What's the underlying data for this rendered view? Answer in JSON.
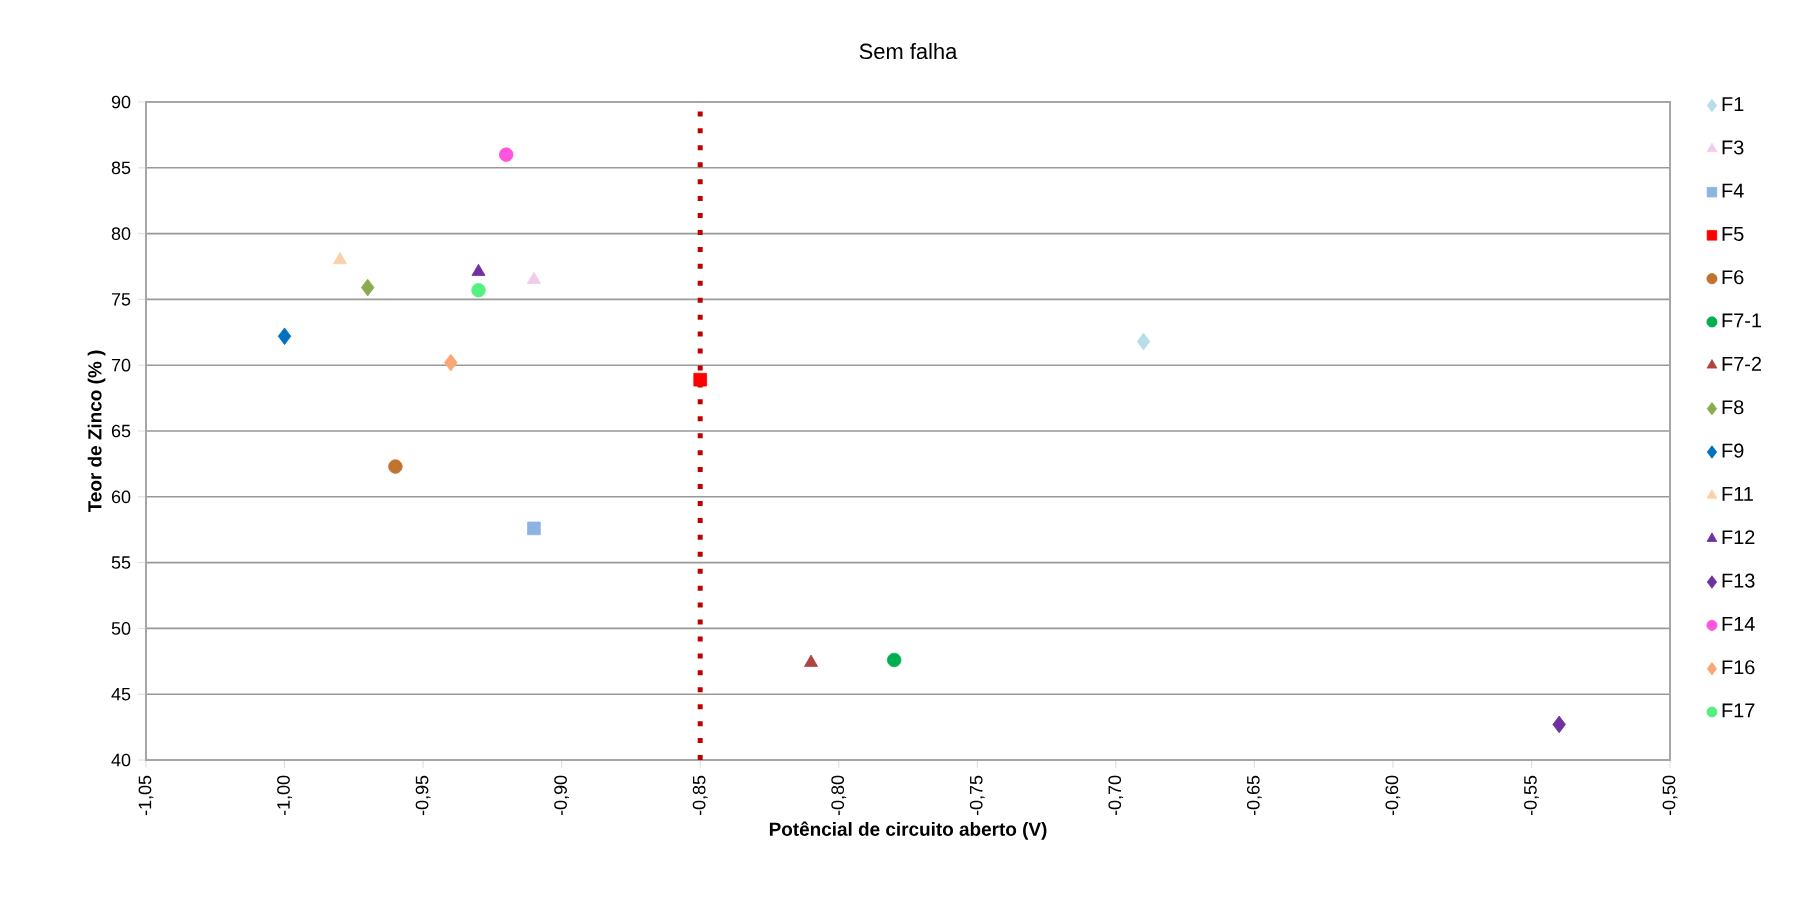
{
  "chart_data": {
    "type": "scatter",
    "title": "Sem falha",
    "xlabel": "Potêncial de circuito aberto (V)",
    "ylabel": "Teor de Zinco (% )",
    "series": [
      {
        "name": "F1",
        "color": "#b7dde8",
        "marker": "diamond",
        "x": [
          -0.69
        ],
        "values": [
          71.8
        ]
      },
      {
        "name": "F3",
        "color": "#f2cbec",
        "marker": "triangle",
        "x": [
          -0.91
        ],
        "values": [
          76.5
        ]
      },
      {
        "name": "F4",
        "color": "#8db3e2",
        "marker": "square",
        "x": [
          -0.91
        ],
        "values": [
          57.6
        ]
      },
      {
        "name": "F5",
        "color": "#ff0000",
        "marker": "square",
        "x": [
          -0.85
        ],
        "values": [
          68.9
        ]
      },
      {
        "name": "F6",
        "color": "#c0722f",
        "marker": "circle",
        "x": [
          -0.96
        ],
        "values": [
          62.3
        ]
      },
      {
        "name": "F7-1",
        "color": "#00b050",
        "marker": "circle",
        "x": [
          -0.78
        ],
        "values": [
          47.6
        ]
      },
      {
        "name": "F7-2",
        "color": "#b04444",
        "marker": "triangle",
        "x": [
          -0.81
        ],
        "values": [
          47.4
        ]
      },
      {
        "name": "F8",
        "color": "#8aac50",
        "marker": "diamond",
        "x": [
          -0.97
        ],
        "values": [
          75.9
        ]
      },
      {
        "name": "F9",
        "color": "#0070c0",
        "marker": "diamond",
        "x": [
          -1.0
        ],
        "values": [
          72.2
        ]
      },
      {
        "name": "F11",
        "color": "#fad0aa",
        "marker": "triangle",
        "x": [
          -0.98
        ],
        "values": [
          78.0
        ]
      },
      {
        "name": "F12",
        "color": "#7030a0",
        "marker": "triangle",
        "x": [
          -0.93
        ],
        "values": [
          77.1
        ]
      },
      {
        "name": "F13",
        "color": "#7030a0",
        "marker": "diamond",
        "x": [
          -0.54
        ],
        "values": [
          42.7
        ]
      },
      {
        "name": "F14",
        "color": "#ff55dd",
        "marker": "circle",
        "x": [
          -0.92
        ],
        "values": [
          86.0
        ]
      },
      {
        "name": "F16",
        "color": "#f9a875",
        "marker": "diamond",
        "x": [
          -0.94
        ],
        "values": [
          70.2
        ]
      },
      {
        "name": "F17",
        "color": "#55f080",
        "marker": "circle",
        "x": [
          -0.93
        ],
        "values": [
          75.7
        ]
      }
    ],
    "xlim": [
      -1.05,
      -0.5
    ],
    "xticks": [
      {
        "value": -1.05,
        "label": "-1,05"
      },
      {
        "value": -1.0,
        "label": "-1,00"
      },
      {
        "value": -0.95,
        "label": "-0,95"
      },
      {
        "value": -0.9,
        "label": "-0,90"
      },
      {
        "value": -0.85,
        "label": "-0,85"
      },
      {
        "value": -0.8,
        "label": "-0,80"
      },
      {
        "value": -0.75,
        "label": "-0,75"
      },
      {
        "value": -0.7,
        "label": "-0,70"
      },
      {
        "value": -0.65,
        "label": "-0,65"
      },
      {
        "value": -0.6,
        "label": "-0,60"
      },
      {
        "value": -0.55,
        "label": "-0,55"
      },
      {
        "value": -0.5,
        "label": "-0,50"
      }
    ],
    "ylim": [
      40,
      90
    ],
    "yticks": [
      40,
      45,
      50,
      55,
      60,
      65,
      70,
      75,
      80,
      85,
      90
    ],
    "ref_lines": [
      {
        "axis": "x",
        "value": -0.85,
        "color": "#c00000",
        "line_style": "dotted"
      }
    ],
    "grid": "y",
    "legend": "right"
  }
}
